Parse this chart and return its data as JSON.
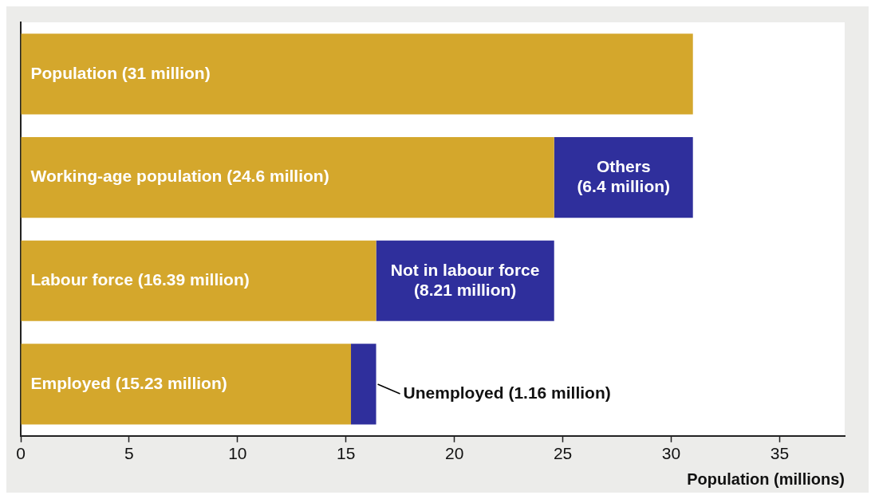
{
  "chart_data": {
    "type": "bar",
    "orientation": "horizontal",
    "stacked": true,
    "xlabel": "Population (millions)",
    "categories": [
      null,
      null,
      null,
      null
    ],
    "series": [
      {
        "color": "#d4a72c",
        "values": [
          31,
          24.6,
          16.39,
          15.23
        ],
        "value_labels": [
          "Population (31 million)",
          "Working-age population (24.6 million)",
          "Labour force (16.39 million)",
          "Employed (15.23 million)"
        ]
      },
      {
        "color": "#2f2f9c",
        "values": [
          null,
          6.4,
          8.21,
          1.16
        ],
        "value_labels": [
          null,
          "Others (6.4 million)",
          "Not in labour force (8.21 million)",
          "Unemployed (1.16 million)"
        ]
      }
    ],
    "xlim": [
      0,
      38
    ],
    "xticks": [
      0,
      5,
      10,
      15,
      20,
      25,
      30,
      35
    ],
    "grid": false,
    "legend": false
  }
}
